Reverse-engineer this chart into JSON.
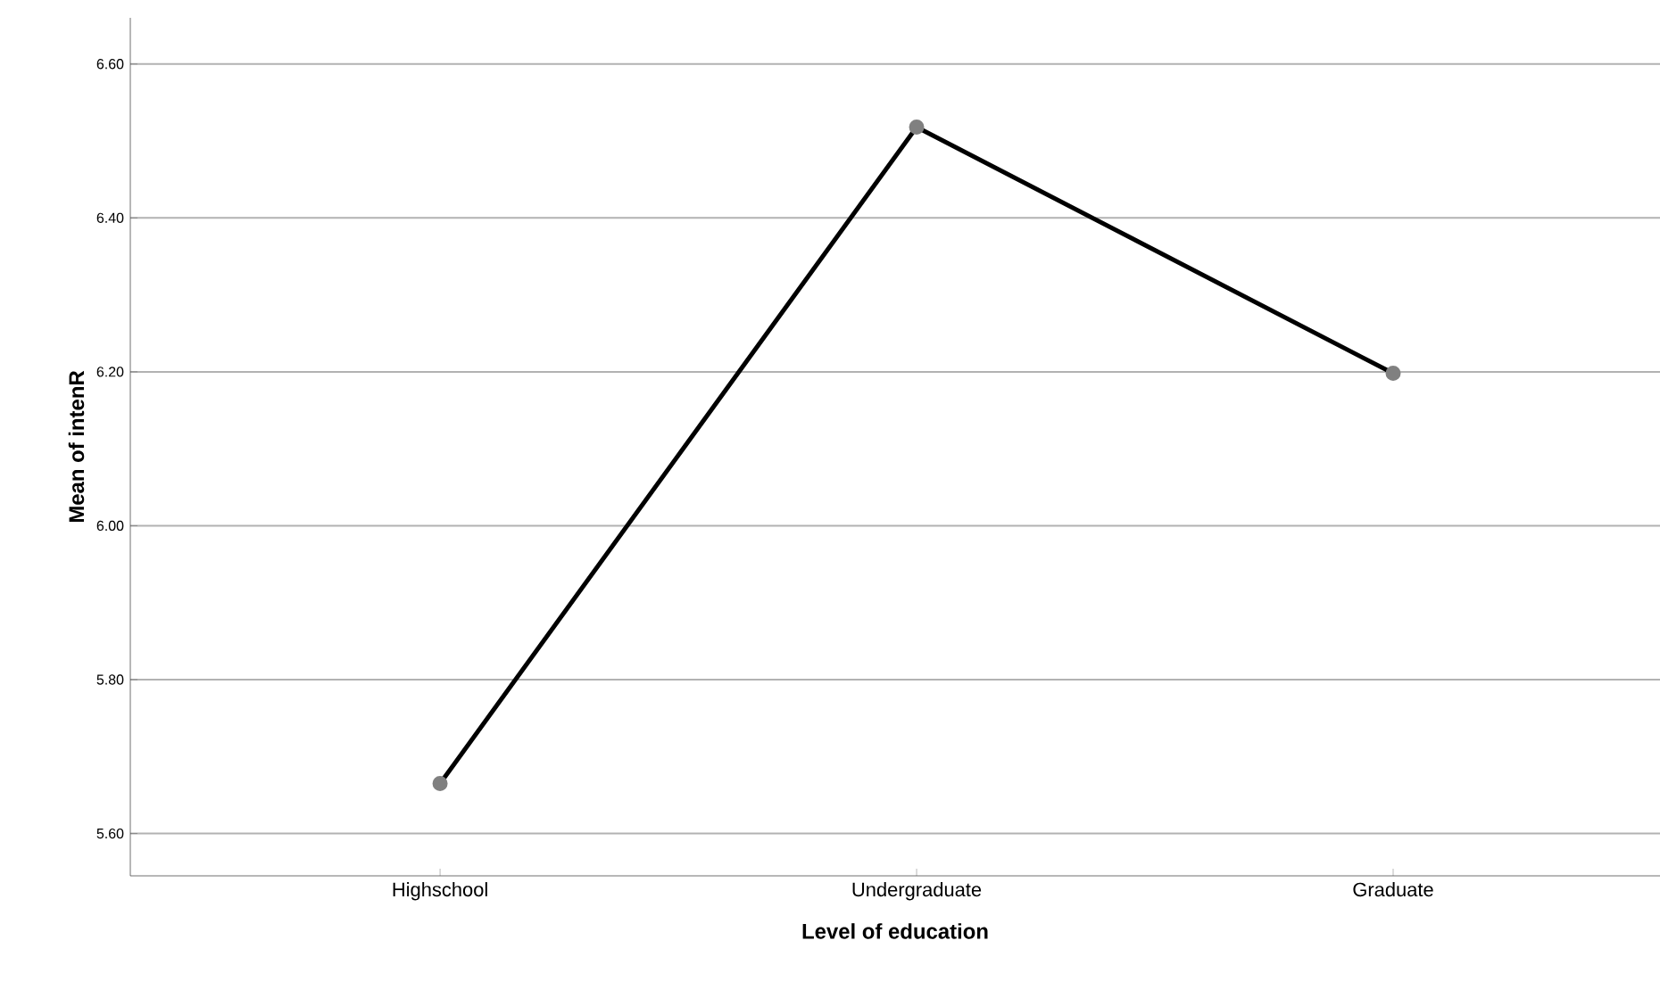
{
  "chart_data": {
    "type": "line",
    "xlabel": "Level of education",
    "ylabel": "Mean of intenR",
    "categories": [
      "Highschool",
      "Undergraduate",
      "Graduate"
    ],
    "series": [
      {
        "color": "#000000",
        "values": [
          5.665,
          6.518,
          6.198
        ]
      }
    ],
    "ylim": [
      5.545,
      6.66
    ],
    "yticks": [
      {
        "value": 5.6,
        "label": "5.60"
      },
      {
        "value": 5.8,
        "label": "5.80"
      },
      {
        "value": 6.0,
        "label": "6.00"
      },
      {
        "value": 6.2,
        "label": "6.20"
      },
      {
        "value": 6.4,
        "label": "6.40"
      },
      {
        "value": 6.6,
        "label": "6.60"
      }
    ],
    "grid": "y",
    "marker": "circle",
    "line_style": "solid"
  }
}
